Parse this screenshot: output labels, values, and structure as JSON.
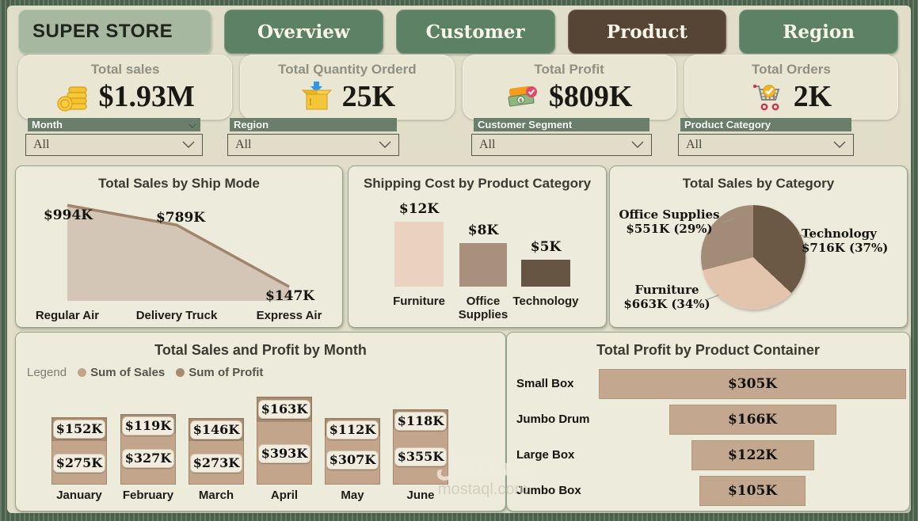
{
  "nav": {
    "brand": "SUPER STORE",
    "tabs": [
      {
        "label": "Overview",
        "active": false
      },
      {
        "label": "Customer",
        "active": false
      },
      {
        "label": "Product",
        "active": true
      },
      {
        "label": "Region",
        "active": false
      }
    ]
  },
  "kpis": [
    {
      "title": "Total sales",
      "value": "$1.93M",
      "icon": "coins-icon"
    },
    {
      "title": "Total Quantity Orderd",
      "value": "25K",
      "icon": "package-icon"
    },
    {
      "title": "Total Profit",
      "value": "$809K",
      "icon": "wallet-icon"
    },
    {
      "title": "Total Orders",
      "value": "2K",
      "icon": "cart-icon"
    }
  ],
  "filters": [
    {
      "label": "Month",
      "value": "All"
    },
    {
      "label": "Region",
      "value": "All"
    },
    {
      "label": "Customer Segment",
      "value": "All"
    },
    {
      "label": "Product Category",
      "value": "All"
    }
  ],
  "colors": {
    "tab_green": "#5d8164",
    "tab_active_brown": "#564434",
    "slicer_header": "#6a7e6c",
    "frame_green": "#4a614c"
  },
  "watermark": {
    "arabic": "مستقل",
    "domain": "mostaql.com"
  },
  "chart_data": [
    {
      "type": "area",
      "title": "Total Sales by Ship Mode",
      "categories": [
        "Regular Air",
        "Delivery Truck",
        "Express Air"
      ],
      "values": [
        994,
        789,
        147
      ],
      "labels": [
        "$994K",
        "$789K",
        "$147K"
      ],
      "unit": "K USD",
      "line_color": "#a0846c",
      "fill_color": "#cfc2b1",
      "ylim": [
        0,
        1000
      ]
    },
    {
      "type": "bar",
      "title": "Shipping Cost by Product Category",
      "categories": [
        "Furniture",
        "Office Supplies",
        "Technology"
      ],
      "values": [
        12,
        8,
        5
      ],
      "labels": [
        "$12K",
        "$8K",
        "$5K"
      ],
      "colors": [
        "#ebd1bf",
        "#a8907c",
        "#665443"
      ],
      "unit": "K USD"
    },
    {
      "type": "pie",
      "title": "Total Sales by Category",
      "slices": [
        {
          "name": "Technology",
          "value": 716,
          "pct": 37,
          "label": "$716K (37%)",
          "color": "#6b5946"
        },
        {
          "name": "Furniture",
          "value": 663,
          "pct": 34,
          "label": "$663K (34%)",
          "color": "#e3c5ae"
        },
        {
          "name": "Office Supplies",
          "value": 551,
          "pct": 29,
          "label": "$551K (29%)",
          "color": "#a28c78"
        }
      ],
      "unit": "K USD"
    },
    {
      "type": "stacked-bar",
      "title": "Total Sales and Profit by Month",
      "legend_title": "Legend",
      "categories": [
        "January",
        "February",
        "March",
        "April",
        "May",
        "June"
      ],
      "series": [
        {
          "name": "Sum of Sales",
          "color": "#c2a58a",
          "values": [
            275,
            327,
            273,
            393,
            307,
            355
          ],
          "labels": [
            "$275K",
            "$327K",
            "$273K",
            "$393K",
            "$307K",
            "$355K"
          ]
        },
        {
          "name": "Sum of Profit",
          "color": "#a78c6f",
          "values": [
            152,
            119,
            146,
            163,
            112,
            118
          ],
          "labels": [
            "$152K",
            "$119K",
            "$146K",
            "$163K",
            "$112K",
            "$118K"
          ]
        }
      ],
      "unit": "K USD"
    },
    {
      "type": "funnel",
      "title": "Total Profit by Product Container",
      "categories": [
        "Small Box",
        "Jumbo Drum",
        "Large Box",
        "Jumbo Box"
      ],
      "values": [
        305,
        166,
        122,
        105
      ],
      "labels": [
        "$305K",
        "$166K",
        "$122K",
        "$105K"
      ],
      "color": "#c3a88f",
      "unit": "K USD"
    }
  ]
}
